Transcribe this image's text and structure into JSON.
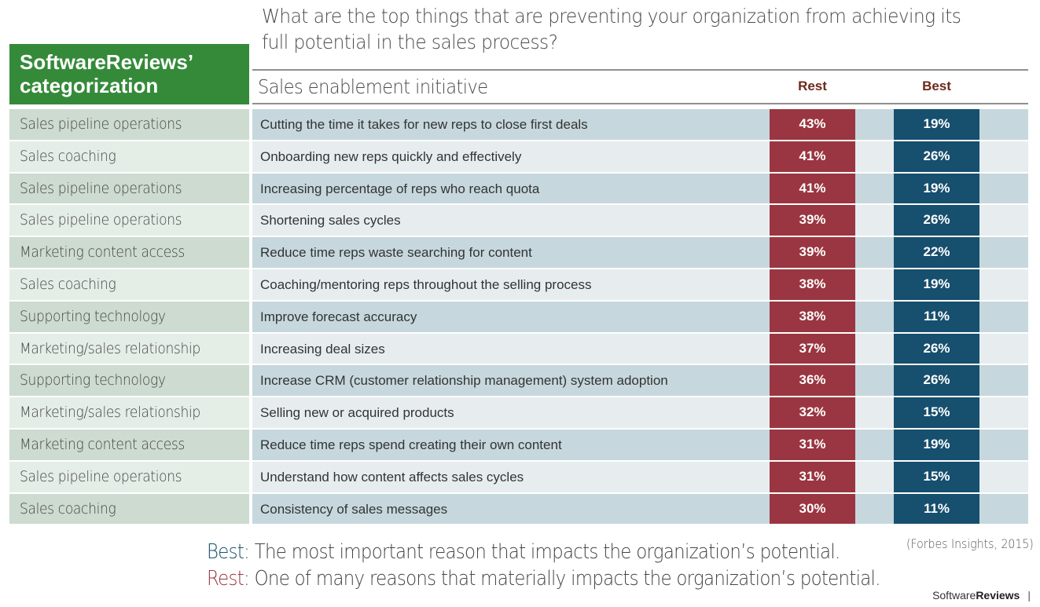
{
  "question": "What are the top things that are preventing your organization from achieving its full potential in the sales process?",
  "headers": {
    "category": "SoftwareReviews’ categorization",
    "initiative": "Sales enablement initiative",
    "rest": "Rest",
    "best": "Best"
  },
  "rows": [
    {
      "category": "Sales pipeline operations",
      "initiative": "Cutting the time it takes for new reps to close first deals",
      "rest": "43%",
      "best": "19%"
    },
    {
      "category": "Sales coaching",
      "initiative": "Onboarding new reps quickly and effectively",
      "rest": "41%",
      "best": "26%"
    },
    {
      "category": "Sales pipeline operations",
      "initiative": "Increasing percentage of reps who reach quota",
      "rest": "41%",
      "best": "19%"
    },
    {
      "category": "Sales pipeline operations",
      "initiative": "Shortening sales cycles",
      "rest": "39%",
      "best": "26%"
    },
    {
      "category": "Marketing content access",
      "initiative": "Reduce time reps waste searching for content",
      "rest": "39%",
      "best": "22%"
    },
    {
      "category": "Sales coaching",
      "initiative": "Coaching/mentoring reps throughout the selling process",
      "rest": "38%",
      "best": "19%"
    },
    {
      "category": "Supporting technology",
      "initiative": "Improve forecast accuracy",
      "rest": "38%",
      "best": "11%"
    },
    {
      "category": "Marketing/sales relationship",
      "initiative": "Increasing deal sizes",
      "rest": "37%",
      "best": "26%"
    },
    {
      "category": "Supporting technology",
      "initiative": "Increase CRM (customer relationship management) system adoption",
      "rest": "36%",
      "best": "26%"
    },
    {
      "category": "Marketing/sales relationship",
      "initiative": "Selling new or acquired products",
      "rest": "32%",
      "best": "15%"
    },
    {
      "category": "Marketing content access",
      "initiative": "Reduce time reps spend creating their own content",
      "rest": "31%",
      "best": "19%"
    },
    {
      "category": "Sales pipeline operations",
      "initiative": "Understand how content affects sales cycles",
      "rest": "31%",
      "best": "15%"
    },
    {
      "category": "Sales coaching",
      "initiative": "Consistency of sales messages",
      "rest": "30%",
      "best": "11%"
    }
  ],
  "legend": {
    "best_key": "Best",
    "best_text": ": The most important reason that impacts the organization’s potential.",
    "rest_key": "Rest",
    "rest_text": ": One of many reasons that materially impacts the organization’s potential."
  },
  "source": "(Forbes Insights, 2015)",
  "brand": {
    "light": "Software",
    "bold": "Reviews",
    "separator": "|"
  },
  "colors": {
    "header_green": "#358a3a",
    "rest_red": "#9a3641",
    "best_blue": "#174f6e"
  },
  "chart_data": {
    "type": "table",
    "title": "What are the top things that are preventing your organization from achieving its full potential in the sales process?",
    "columns": [
      "SoftwareReviews’ categorization",
      "Sales enablement initiative",
      "Rest",
      "Best"
    ],
    "categories": [
      "Cutting the time it takes for new reps to close first deals",
      "Onboarding new reps quickly and effectively",
      "Increasing percentage of reps who reach quota",
      "Shortening sales cycles",
      "Reduce time reps waste searching for content",
      "Coaching/mentoring reps throughout the selling process",
      "Improve forecast accuracy",
      "Increasing deal sizes",
      "Increase CRM (customer relationship management) system adoption",
      "Selling new or acquired products",
      "Reduce time reps spend creating their own content",
      "Understand how content affects sales cycles",
      "Consistency of sales messages"
    ],
    "series": [
      {
        "name": "Rest",
        "values": [
          43,
          41,
          41,
          39,
          39,
          38,
          38,
          37,
          36,
          32,
          31,
          31,
          30
        ]
      },
      {
        "name": "Best",
        "values": [
          19,
          26,
          19,
          26,
          22,
          19,
          11,
          26,
          26,
          15,
          19,
          15,
          11
        ]
      }
    ],
    "unit": "%",
    "source": "(Forbes Insights, 2015)"
  }
}
